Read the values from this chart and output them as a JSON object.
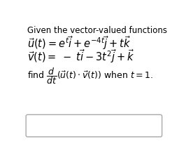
{
  "background_color": "#ffffff",
  "title_text": "Given the vector-valued functions",
  "line1": "$\\vec{u}(t) = e^{t}\\vec{i} + e^{-4t}\\vec{j} + t\\vec{k}$",
  "line2": "$\\vec{v}(t) = \\; - \\; t\\vec{i} - 3t^{2}\\vec{j} + \\vec{k}$",
  "find_text": "find $\\dfrac{d}{dt}(\\vec{u}(t) \\cdot \\vec{v}(t))$ when $t = 1.$",
  "text_color": "#000000",
  "box_edge_color": "#aaaaaa",
  "title_fontsize": 8.5,
  "body_fontsize": 10.5,
  "find_fontsize": 9.0
}
